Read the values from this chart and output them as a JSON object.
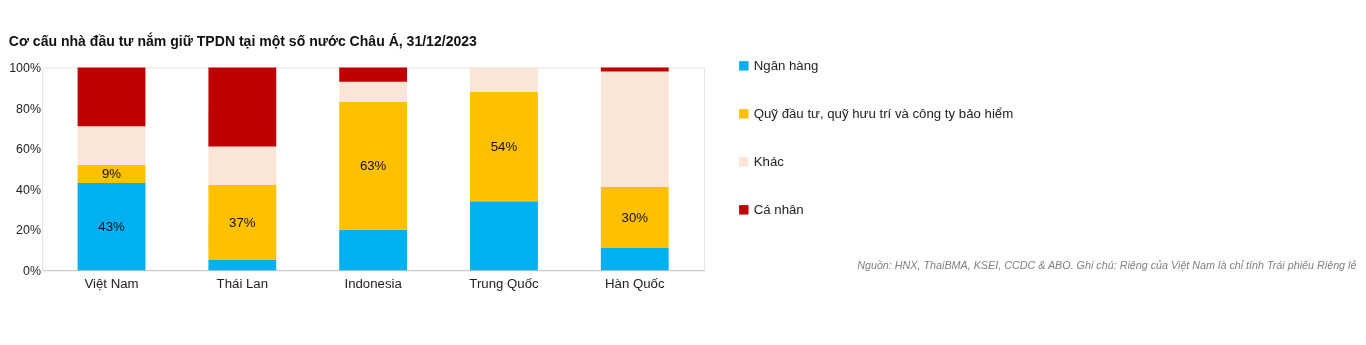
{
  "chart_data": {
    "type": "bar",
    "title": "Cơ cấu nhà đầu tư nắm giữ TPDN tại một số nước Châu Á, 31/12/2023",
    "stacked": true,
    "categories": [
      "Việt Nam",
      "Thái Lan",
      "Indonesia",
      "Trung Quốc",
      "Hàn Quốc"
    ],
    "series": [
      {
        "name": "Ngân hàng",
        "color": "#00b0f0",
        "values": [
          43,
          5,
          20,
          34,
          11
        ],
        "value_labels": [
          "43%",
          null,
          null,
          null,
          null
        ]
      },
      {
        "name": "Quỹ đầu tư, quỹ hưu trí và công ty bảo hiểm",
        "color": "#ffc000",
        "values": [
          9,
          37,
          63,
          54,
          30
        ],
        "value_labels": [
          "9%",
          "37%",
          "63%",
          "54%",
          "30%"
        ]
      },
      {
        "name": "Khác",
        "color": "#fbe5d6",
        "values": [
          19,
          19,
          10,
          12,
          57
        ],
        "value_labels": [
          null,
          null,
          null,
          null,
          null
        ]
      },
      {
        "name": "Cá nhân",
        "color": "#c00000",
        "values": [
          29,
          39,
          7,
          0,
          2
        ],
        "value_labels": [
          null,
          null,
          null,
          null,
          null
        ]
      }
    ],
    "ylim": [
      0,
      100
    ],
    "yticks": [
      {
        "value": 0,
        "label": "0%"
      },
      {
        "value": 20,
        "label": "20%"
      },
      {
        "value": 40,
        "label": "40%"
      },
      {
        "value": 60,
        "label": "60%"
      },
      {
        "value": 80,
        "label": "80%"
      },
      {
        "value": 100,
        "label": "100%"
      }
    ],
    "grid": false,
    "legend": "right",
    "annotations": [
      "Nguồn: HNX, ThaiBMA, KSEI, CCDC & ABO. Ghi chú: Riêng của Việt Nam là chỉ tính Trái phiếu Riêng lẻ"
    ]
  }
}
